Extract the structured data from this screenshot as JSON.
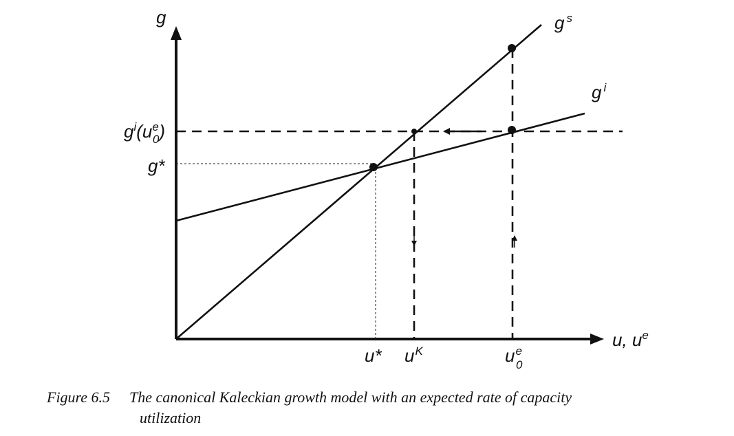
{
  "diagram": {
    "y_axis_label": "g",
    "x_axis_label_u": "u, u",
    "x_axis_label_sup": "e",
    "curve_gs_label": "g",
    "curve_gs_sup": "s",
    "curve_gi_label": "g",
    "curve_gi_sup": "i",
    "y_tick_gi_u0e": "g",
    "y_tick_gi_u0e_sup": "i",
    "y_tick_gi_u0e_paren_open": "(u",
    "y_tick_gi_u0e_sub": "0",
    "y_tick_gi_u0e_sup2": "e",
    "y_tick_gi_u0e_paren_close": ")",
    "y_tick_gstar": "g*",
    "x_tick_ustar": "u*",
    "x_tick_uK": "u",
    "x_tick_uK_sup": "K",
    "x_tick_u0e": "u",
    "x_tick_u0e_sub": "0",
    "x_tick_u0e_sup": "e"
  },
  "caption": {
    "number": "Figure 6.5",
    "text_line1": "The canonical Kaleckian growth model with an expected rate of capacity",
    "text_line2": "utilization"
  }
}
